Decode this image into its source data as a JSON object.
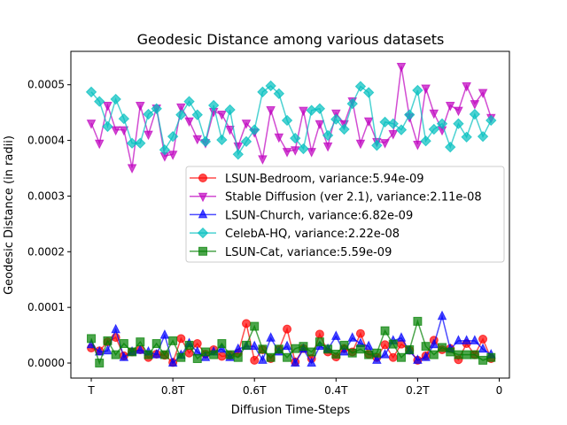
{
  "chart_data": {
    "type": "line",
    "title": "Geodesic Distance among various datasets",
    "xlabel": "Diffusion Time-Steps",
    "ylabel": "Geodesic Distance (in radii)",
    "x_ticks": [
      {
        "value": 1.0,
        "label": "T"
      },
      {
        "value": 0.8,
        "label": "0.8T"
      },
      {
        "value": 0.6,
        "label": "0.6T"
      },
      {
        "value": 0.4,
        "label": "0.4T"
      },
      {
        "value": 0.2,
        "label": "0.2T"
      },
      {
        "value": 0.0,
        "label": "0"
      }
    ],
    "y_ticks": [
      {
        "value": 0.0,
        "label": "0.0000"
      },
      {
        "value": 0.0001,
        "label": "0.0001"
      },
      {
        "value": 0.0002,
        "label": "0.0002"
      },
      {
        "value": 0.0003,
        "label": "0.0003"
      },
      {
        "value": 0.0004,
        "label": "0.0004"
      },
      {
        "value": 0.0005,
        "label": "0.0005"
      }
    ],
    "xlim": [
      1.05,
      -0.025
    ],
    "ylim": [
      -2.7e-05,
      0.00056
    ],
    "x_reversed": true,
    "grid": false,
    "legend_position": "center-right",
    "x": [
      1.0,
      0.98,
      0.96,
      0.94,
      0.92,
      0.9,
      0.88,
      0.86,
      0.84,
      0.82,
      0.8,
      0.78,
      0.76,
      0.74,
      0.72,
      0.7,
      0.68,
      0.66,
      0.64,
      0.62,
      0.6,
      0.58,
      0.56,
      0.54,
      0.52,
      0.5,
      0.48,
      0.46,
      0.44,
      0.42,
      0.4,
      0.38,
      0.36,
      0.34,
      0.32,
      0.3,
      0.28,
      0.26,
      0.24,
      0.22,
      0.2,
      0.18,
      0.16,
      0.14,
      0.12,
      0.1,
      0.08,
      0.06,
      0.04,
      0.02
    ],
    "series": [
      {
        "name": "LSUN-Bedroom, variance:5.94e-09",
        "color": "#ff0000",
        "marker": "circle",
        "values": [
          2.7e-05,
          2.2e-05,
          3.8e-05,
          4.6e-05,
          1.3e-05,
          2e-05,
          2.4e-05,
          1e-05,
          1.6e-05,
          1.4e-05,
          1e-06,
          4.4e-05,
          1.8e-05,
          3.5e-05,
          1.6e-05,
          2.4e-05,
          1.2e-05,
          1.4e-05,
          1.8e-05,
          7.1e-05,
          5e-06,
          2.4e-05,
          8e-06,
          2.4e-05,
          6.1e-05,
          2e-06,
          2.6e-05,
          8e-06,
          5.2e-05,
          2e-05,
          1.1e-05,
          2.6e-05,
          2e-05,
          5.3e-05,
          1.6e-05,
          1e-05,
          3.3e-05,
          1e-05,
          3.4e-05,
          2.3e-05,
          5e-06,
          1.3e-05,
          4.1e-05,
          2.4e-05,
          2.6e-05,
          6e-06,
          3.5e-05,
          1.5e-05,
          4.3e-05,
          8e-06
        ]
      },
      {
        "name": "Stable Diffusion (ver 2.1), variance:2.11e-08",
        "color": "#bf00bf",
        "marker": "triangle-down",
        "values": [
          0.000431,
          0.000395,
          0.000463,
          0.000419,
          0.000419,
          0.000351,
          0.000463,
          0.000411,
          0.000458,
          0.000372,
          0.000375,
          0.00046,
          0.000435,
          0.000403,
          0.000396,
          0.000452,
          0.000447,
          0.00042,
          0.00039,
          0.000431,
          0.000415,
          0.000367,
          0.000455,
          0.000406,
          0.00038,
          0.000383,
          0.000454,
          0.00038,
          0.00043,
          0.00039,
          0.000449,
          0.00043,
          0.000471,
          0.000395,
          0.000435,
          0.000398,
          0.000396,
          0.000412,
          0.000533,
          0.000442,
          0.000393,
          0.000494,
          0.000449,
          0.000419,
          0.000463,
          0.000454,
          0.000498,
          0.000466,
          0.000486,
          0.000441
        ]
      },
      {
        "name": "LSUN-Church, variance:6.82e-09",
        "color": "#0000ff",
        "marker": "triangle-up",
        "values": [
          3.3e-05,
          2e-05,
          2.2e-05,
          6e-05,
          1e-05,
          2e-05,
          2.3e-05,
          2e-05,
          1.5e-05,
          5e-05,
          0.0,
          1.4e-05,
          3.5e-05,
          2e-05,
          1e-05,
          2e-05,
          2.5e-05,
          1e-05,
          2.5e-05,
          3e-05,
          3e-05,
          5e-06,
          4.5e-05,
          2e-05,
          3e-05,
          0.0,
          2.5e-05,
          0.0,
          3e-05,
          2.5e-05,
          4.8e-05,
          2e-05,
          4.5e-05,
          3.5e-05,
          3e-05,
          5e-06,
          1.5e-05,
          4e-05,
          4.5e-05,
          2.2e-05,
          5e-06,
          1e-05,
          3.3e-05,
          8.4e-05,
          2.5e-05,
          4e-05,
          4e-05,
          4e-05,
          2.5e-05,
          1.5e-05
        ]
      },
      {
        "name": "CelebA-HQ, variance:2.22e-08",
        "color": "#00bfbf",
        "marker": "diamond",
        "values": [
          0.000487,
          0.00047,
          0.000425,
          0.000474,
          0.000439,
          0.000395,
          0.000395,
          0.000447,
          0.000457,
          0.000383,
          0.000407,
          0.000446,
          0.00047,
          0.000446,
          0.000398,
          0.000463,
          0.000401,
          0.000455,
          0.000375,
          0.000398,
          0.000419,
          0.000487,
          0.000498,
          0.000484,
          0.000436,
          0.000404,
          0.000385,
          0.000454,
          0.000457,
          0.000409,
          0.000438,
          0.00042,
          0.000466,
          0.000497,
          0.000486,
          0.000391,
          0.000433,
          0.00043,
          0.000419,
          0.000446,
          0.00049,
          0.000399,
          0.00042,
          0.00043,
          0.000388,
          0.00043,
          0.000406,
          0.000447,
          0.000407,
          0.000436
        ]
      },
      {
        "name": "LSUN-Cat, variance:5.59e-09",
        "color": "#008000",
        "marker": "square",
        "values": [
          4.4e-05,
          0.0,
          4e-05,
          1.5e-05,
          3.5e-05,
          2e-05,
          3.8e-05,
          1.5e-05,
          3.5e-05,
          1.5e-05,
          4e-05,
          1e-05,
          3.2e-05,
          8e-06,
          2e-05,
          1.5e-05,
          3.5e-05,
          1.5e-05,
          1e-05,
          3.2e-05,
          6.6e-05,
          2.5e-05,
          1e-05,
          2.5e-05,
          1e-05,
          2.6e-05,
          3e-05,
          2e-05,
          3.8e-05,
          2.5e-05,
          1.6e-05,
          3.2e-05,
          1.8e-05,
          2.5e-05,
          1.5e-05,
          1.8e-05,
          5.8e-05,
          3.4e-05,
          1e-05,
          2.4e-05,
          7.5e-05,
          3e-05,
          1.5e-05,
          2.8e-05,
          2e-05,
          1.5e-05,
          1.5e-05,
          1.5e-05,
          5e-06,
          1e-05
        ]
      }
    ]
  }
}
